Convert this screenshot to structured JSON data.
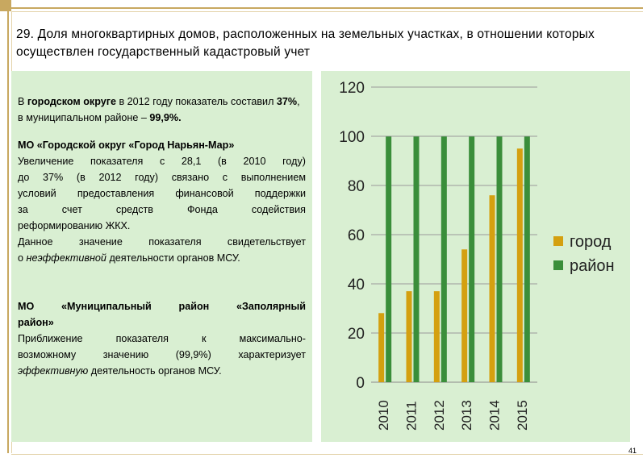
{
  "title": "29. Доля многоквартирных домов, расположенных на земельных участках, в отношении которых осуществлен государственный кадастровый учет",
  "left_panel": {
    "p1_a": "В",
    "p1_b": "городском округе",
    "p1_c": "в 2012 году показатель составил",
    "p1_d": "37%",
    "p1_e": ", в муниципальном районе –",
    "p1_f": "99,9",
    "p1_g": "%.",
    "h2": "МО «Городской округ «Город Нарьян-Мар»",
    "p2_lines": [
      "Увеличение показателя с 28,1 (в 2010 году)",
      "до 37% (в 2012 году) связано с выполнением",
      "условий предоставления финансовой поддержки",
      "за счет средств Фонда содействия"
    ],
    "p2_last": "реформированию ЖКХ.",
    "p3_line": "Данное значение показателя свидетельствует",
    "p3_a": "о",
    "p3_b": "неэффективной",
    "p3_c": "деятельности органов МСУ.",
    "h3_line": "МО «Муниципальный район «Заполярный",
    "h3_last": "район»",
    "p4_lines": [
      "Приближение показателя к максимально-",
      "возможному значению (99,9%) характеризует"
    ],
    "p4_a": "эффективную",
    "p4_b": "деятельность органов МСУ."
  },
  "page_number": "41",
  "chart_data": {
    "type": "bar",
    "categories": [
      "2010",
      "2011",
      "2012",
      "2013",
      "2014",
      "2015"
    ],
    "series": [
      {
        "name": "город",
        "values": [
          28.1,
          37,
          37,
          54,
          76,
          95
        ],
        "color": "#d4a010"
      },
      {
        "name": "район",
        "values": [
          99.9,
          99.9,
          99.9,
          99.9,
          99.9,
          99.9
        ],
        "color": "#3a8e3a"
      }
    ],
    "yticks": [
      "0",
      "20",
      "40",
      "60",
      "80",
      "100",
      "120"
    ],
    "ylim": [
      0,
      120
    ],
    "grid": true,
    "legend": "right",
    "xlabel": "",
    "ylabel": ""
  }
}
